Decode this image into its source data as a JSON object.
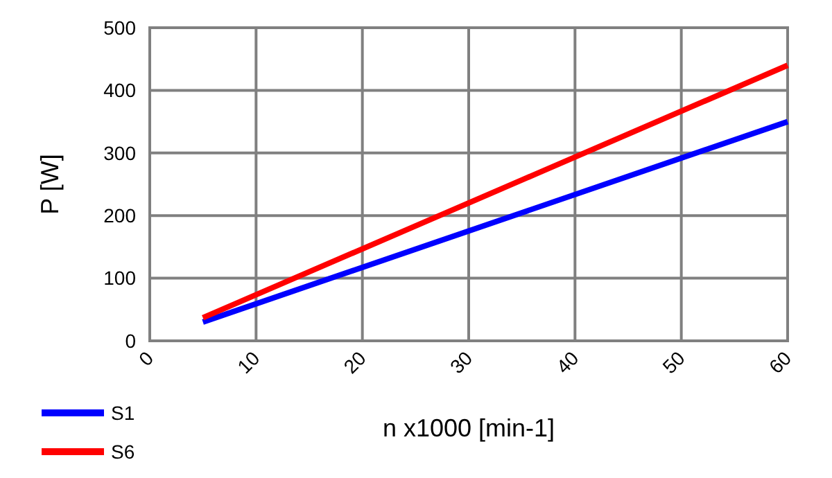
{
  "chart_data": {
    "type": "line",
    "xlabel": "n x1000 [min-1]",
    "ylabel": "P [W]",
    "xlim": [
      0,
      60
    ],
    "ylim": [
      0,
      500
    ],
    "xticks": [
      0,
      10,
      20,
      30,
      40,
      50,
      60
    ],
    "yticks": [
      0,
      100,
      200,
      300,
      400,
      500
    ],
    "grid": true,
    "legend": "bottom left",
    "marker": "none",
    "line_style": "solid",
    "x": [
      5,
      60
    ],
    "series": [
      {
        "name": "S1",
        "color": "#0000ff",
        "values": [
          30,
          350
        ]
      },
      {
        "name": "S6",
        "color": "#ff0000",
        "values": [
          37,
          440
        ]
      }
    ]
  }
}
